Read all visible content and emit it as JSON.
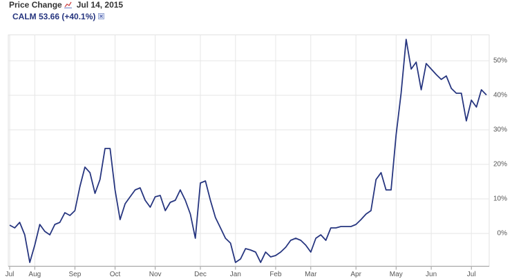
{
  "chart_data": {
    "type": "line",
    "title": "Price Change",
    "date": "Jul 14, 2015",
    "categories": [
      "Jul",
      null,
      null,
      null,
      null,
      "Aug",
      null,
      null,
      null,
      null,
      null,
      null,
      null,
      "Sep",
      null,
      null,
      null,
      null,
      null,
      null,
      null,
      "Oct",
      null,
      null,
      null,
      null,
      null,
      null,
      null,
      "Nov",
      null,
      null,
      null,
      null,
      null,
      null,
      null,
      null,
      "Dec",
      null,
      null,
      null,
      null,
      null,
      null,
      "Jan",
      null,
      null,
      null,
      null,
      null,
      null,
      null,
      "Feb",
      null,
      null,
      null,
      null,
      null,
      null,
      "Mar",
      null,
      null,
      null,
      null,
      null,
      null,
      null,
      null,
      "Apr",
      null,
      null,
      null,
      null,
      null,
      null,
      null,
      "May",
      null,
      null,
      null,
      null,
      null,
      null,
      "Jun",
      null,
      null,
      null,
      null,
      null,
      null,
      null,
      "Jul",
      null,
      null,
      null
    ],
    "series": [
      {
        "name": "CALM 53.66 (+40.1%)",
        "color": "#26357f",
        "values": [
          2.4,
          1.6,
          3.2,
          -0.4,
          -8.4,
          -3.4,
          2.6,
          0.6,
          -0.4,
          2.6,
          3.2,
          6,
          5.2,
          6.6,
          13.6,
          19.2,
          17.6,
          11.6,
          15.6,
          24.6,
          24.6,
          12.6,
          4,
          8.6,
          10.6,
          12.6,
          13.2,
          9.6,
          7.6,
          10.6,
          11,
          6.6,
          9,
          9.6,
          12.6,
          9.6,
          5.6,
          -1.4,
          14.6,
          15.2,
          9.6,
          4.6,
          1.6,
          -1.4,
          -2.8,
          -8.4,
          -7.4,
          -4.4,
          -4.8,
          -5.4,
          -8.4,
          -5.4,
          -6.8,
          -6.4,
          -5.4,
          -4,
          -2,
          -1.4,
          -2,
          -3.4,
          -5.4,
          -1.4,
          -0.4,
          -2,
          1.6,
          1.6,
          2,
          2,
          2,
          2.6,
          4,
          5.6,
          6.6,
          15.6,
          17.6,
          12.6,
          12.6,
          28.6,
          40.6,
          56.2,
          47.6,
          49.6,
          41.6,
          49.2,
          47.6,
          46,
          44.6,
          45.6,
          42,
          40.6,
          40.6,
          32.6,
          38.6,
          36.6,
          41.6,
          40.1
        ]
      }
    ],
    "ylim": [
      -9.5,
      57.5
    ],
    "yticks": [
      {
        "value": 0,
        "label": "0%"
      },
      {
        "value": 10,
        "label": "10%"
      },
      {
        "value": 20,
        "label": "20%"
      },
      {
        "value": 30,
        "label": "30%"
      },
      {
        "value": 40,
        "label": "40%"
      },
      {
        "value": 50,
        "label": "50%"
      }
    ],
    "grid": true
  }
}
